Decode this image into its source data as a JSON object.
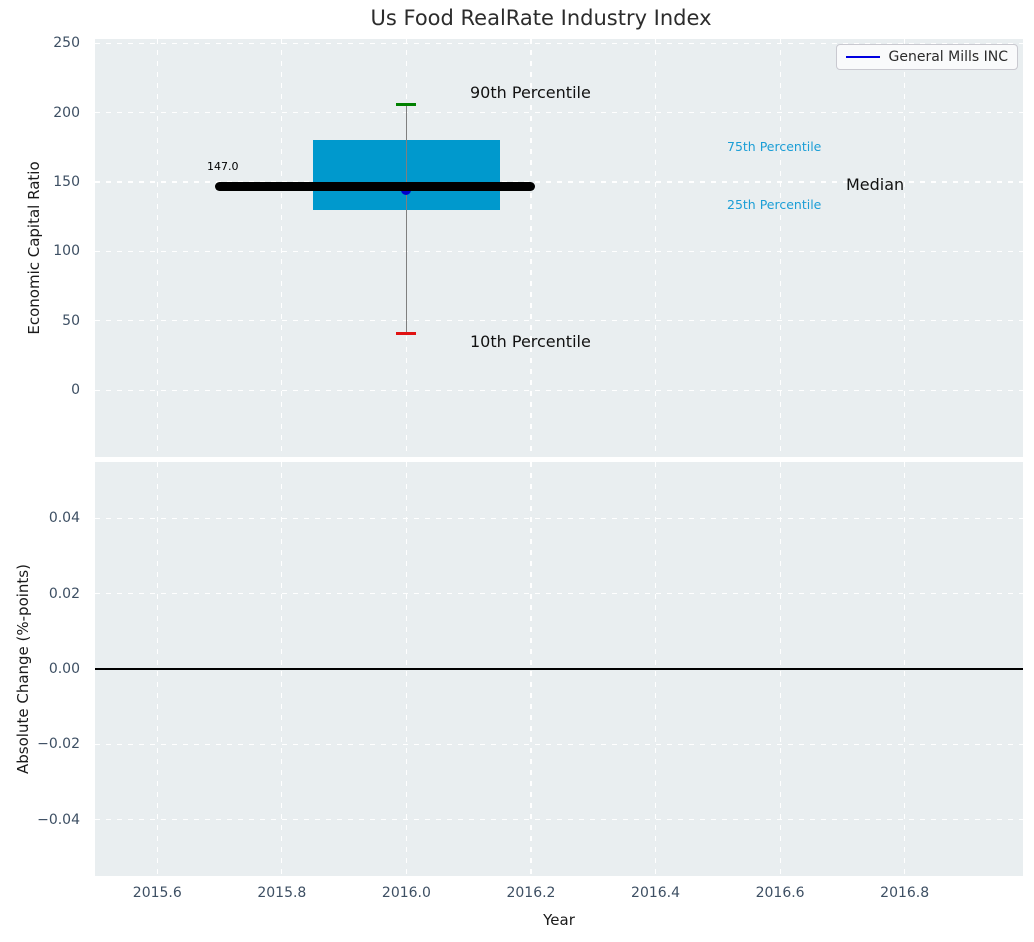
{
  "title": "Us Food RealRate Industry Index",
  "legend": {
    "label": "General Mills INC"
  },
  "annotations": {
    "p90": "90th Percentile",
    "p10": "10th Percentile",
    "p75": "75th Percentile",
    "p25": "25th Percentile",
    "median": "Median",
    "median_value": "147.0"
  },
  "colors": {
    "plot_bg": "#e9eef0",
    "grid": "#ffffff",
    "tick_text": "#3d4f63",
    "title_text": "#2c2c2c",
    "box_fill": "#0099cd",
    "percentile_text": "#1b9ed6",
    "whisker": "#7f7f7f",
    "cap_top": "#008000",
    "cap_bottom": "#e01212",
    "median_line": "#000000",
    "company_marker": "#0000cc",
    "legend_line": "#0000e0",
    "zero_line": "#000000"
  },
  "chart_data": {
    "type": "boxplot",
    "title": "Us Food RealRate Industry Index",
    "x_axis": {
      "label": "Year",
      "xlim": [
        2015.5,
        2016.99
      ],
      "ticks": [
        2015.6,
        2015.8,
        2016.0,
        2016.2,
        2016.4,
        2016.6,
        2016.8
      ],
      "tick_labels": [
        "2015.6",
        "2015.8",
        "2016.0",
        "2016.2",
        "2016.4",
        "2016.6",
        "2016.8"
      ]
    },
    "top_panel": {
      "ylabel": "Economic Capital Ratio",
      "ylim": [
        -48,
        253
      ],
      "yticks": [
        0,
        50,
        100,
        150,
        200,
        250
      ],
      "ytick_labels": [
        "0",
        "50",
        "100",
        "150",
        "200",
        "250"
      ],
      "grid": true,
      "boxplot": {
        "x": 2016.0,
        "box_x_range": [
          2015.85,
          2016.15
        ],
        "median_x_range": [
          2015.7,
          2016.2
        ],
        "p90": 206,
        "p75": 180,
        "median": 147,
        "p25": 130,
        "p10": 41,
        "median_label": "147.0"
      },
      "series": [
        {
          "name": "General Mills INC",
          "color": "#0000cc",
          "points": [
            {
              "x": 2016.0,
              "y": 144
            }
          ]
        }
      ]
    },
    "bottom_panel": {
      "ylabel": "Absolute Change (%-points)",
      "ylim": [
        -0.055,
        0.055
      ],
      "yticks": [
        0.04,
        0.02,
        0.0,
        -0.02,
        -0.04
      ],
      "ytick_labels": [
        "0.04",
        "0.02",
        "0.00",
        "−0.02",
        "−0.04"
      ],
      "grid": true,
      "zero_line": 0.0
    },
    "legend_position": "upper right",
    "grid_style": "white dashed"
  }
}
